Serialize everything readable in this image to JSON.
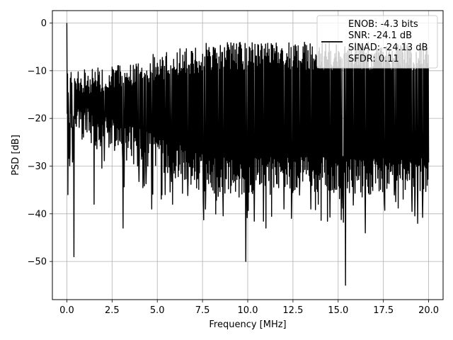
{
  "chart_data": {
    "type": "line",
    "title": "",
    "xlabel": "Frequency [MHz]",
    "ylabel": "PSD [dB]",
    "xlim": [
      -0.8,
      20.8
    ],
    "ylim": [
      -58,
      2.6
    ],
    "x_ticks": [
      0.0,
      2.5,
      5.0,
      7.5,
      10.0,
      12.5,
      15.0,
      17.5,
      20.0
    ],
    "x_tick_labels": [
      "0.0",
      "2.5",
      "5.0",
      "7.5",
      "10.0",
      "12.5",
      "15.0",
      "17.5",
      "20.0"
    ],
    "y_ticks": [
      0,
      -10,
      -20,
      -30,
      -40,
      -50
    ],
    "y_tick_labels": [
      "0",
      "−10",
      "−20",
      "−30",
      "−40",
      "−50"
    ],
    "grid": true,
    "legend_position": "top-right",
    "series": [
      {
        "name": "ENOB: -4.3 bits\nSNR: -24.1 dB\nSINAD: -24.13 dB\nSFDR: 0.11",
        "color": "#000000",
        "x_range": [
          0,
          20
        ],
        "num_points": 1024,
        "band_upper_db": [
          -10,
          -4
        ],
        "band_lower_db": [
          -24,
          -36
        ],
        "notable_points": [
          {
            "x": 0.0,
            "y": 0
          },
          {
            "x": 0.05,
            "y": -36
          },
          {
            "x": 0.4,
            "y": -49
          },
          {
            "x": 1.5,
            "y": -38
          },
          {
            "x": 3.1,
            "y": -43
          },
          {
            "x": 4.7,
            "y": -39
          },
          {
            "x": 9.9,
            "y": -50
          },
          {
            "x": 11.0,
            "y": -43
          },
          {
            "x": 12.0,
            "y": -39
          },
          {
            "x": 13.9,
            "y": -38
          },
          {
            "x": 15.4,
            "y": -55
          },
          {
            "x": 16.5,
            "y": -44
          },
          {
            "x": 19.4,
            "y": -42
          }
        ]
      }
    ]
  },
  "legend": {
    "lines": [
      "ENOB: -4.3 bits",
      "SNR: -24.1 dB",
      "SINAD: -24.13 dB",
      "SFDR: 0.11"
    ],
    "line_color": "#000000"
  }
}
